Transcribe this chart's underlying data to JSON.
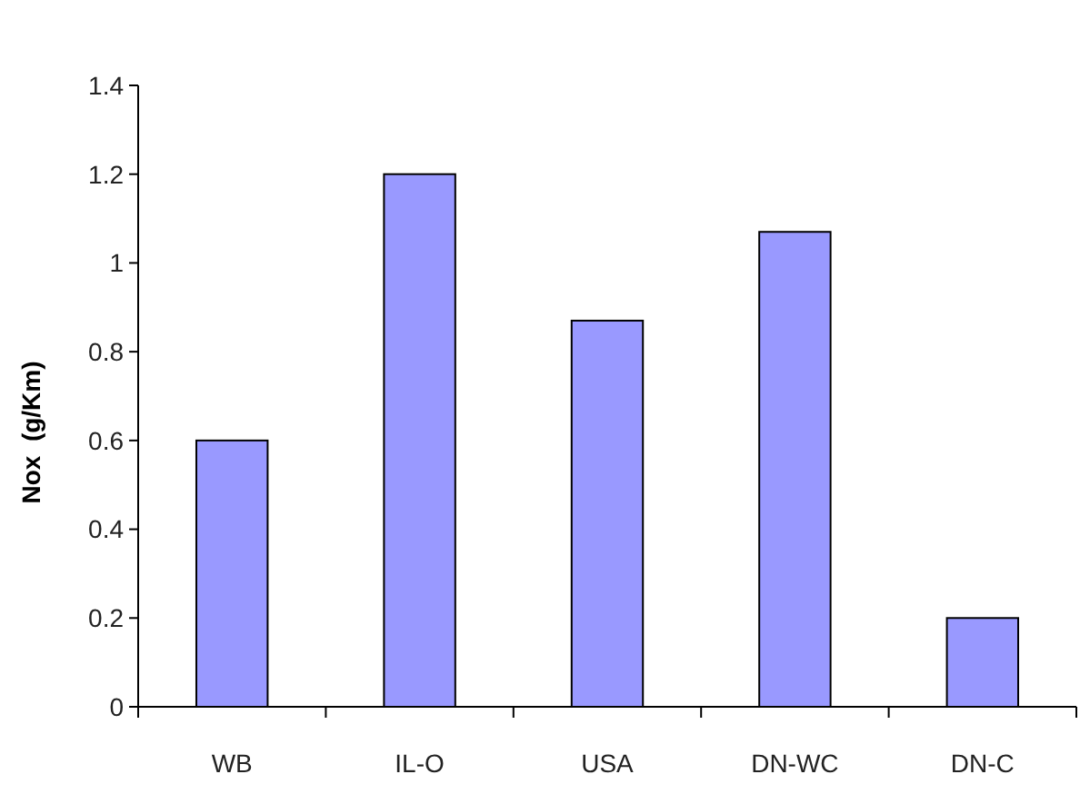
{
  "chart_data": {
    "type": "bar",
    "ylabel": "Nox  (g/Km)",
    "categories": [
      "WB",
      "IL-O",
      "USA",
      "DN-WC",
      "DN-C"
    ],
    "series": [
      {
        "color": "#9999ff",
        "values": [
          0.6,
          1.2,
          0.87,
          1.07,
          0.2
        ]
      }
    ],
    "ylim": [
      0,
      1.4
    ],
    "yticks": [
      0,
      0.2,
      0.4,
      0.6,
      0.8,
      1,
      1.2,
      1.4
    ],
    "grid": false
  }
}
